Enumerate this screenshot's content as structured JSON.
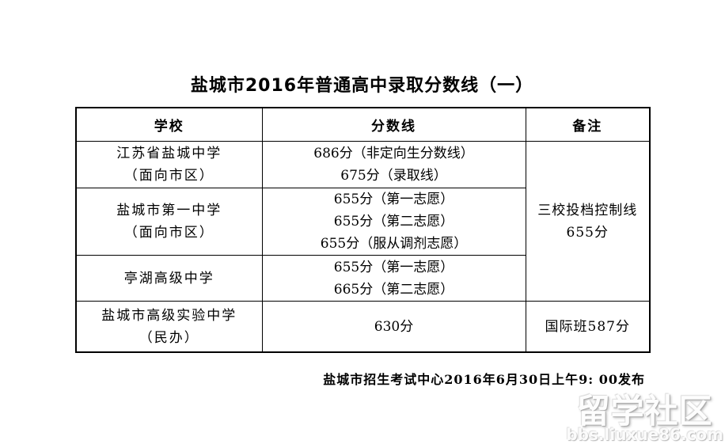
{
  "title": "盐城市2016年普通高中录取分数线（一）",
  "table": {
    "headers": [
      "学校",
      "分数线",
      "备注"
    ],
    "rows": [
      {
        "school": [
          "江苏省盐城中学",
          "（面向市区）"
        ],
        "scores": [
          "686分（非定向生分数线）",
          "675分（录取线）"
        ]
      },
      {
        "school": [
          "盐城市第一中学",
          "（面向市区）"
        ],
        "scores": [
          "655分（第一志愿）",
          "655分（第二志愿）",
          "655分（服从调剂志愿）"
        ]
      },
      {
        "school": [
          "亭湖高级中学"
        ],
        "scores": [
          "655分（第一志愿）",
          "665分（第二志愿）"
        ]
      },
      {
        "school": [
          "盐城市高级实验中学",
          "（民办）"
        ],
        "scores": [
          "630分"
        ],
        "remark": "国际班587分"
      }
    ],
    "merged_remark": [
      "三校投档控制线",
      "655分"
    ]
  },
  "footer": "盐城市招生考试中心2016年6月30日上午9: 00发布",
  "watermark": {
    "name": "留学社区",
    "url": "bbs.liuxue86.com",
    "text_color": "#fdfdfd",
    "shadow_color": "#a8a8a8"
  }
}
